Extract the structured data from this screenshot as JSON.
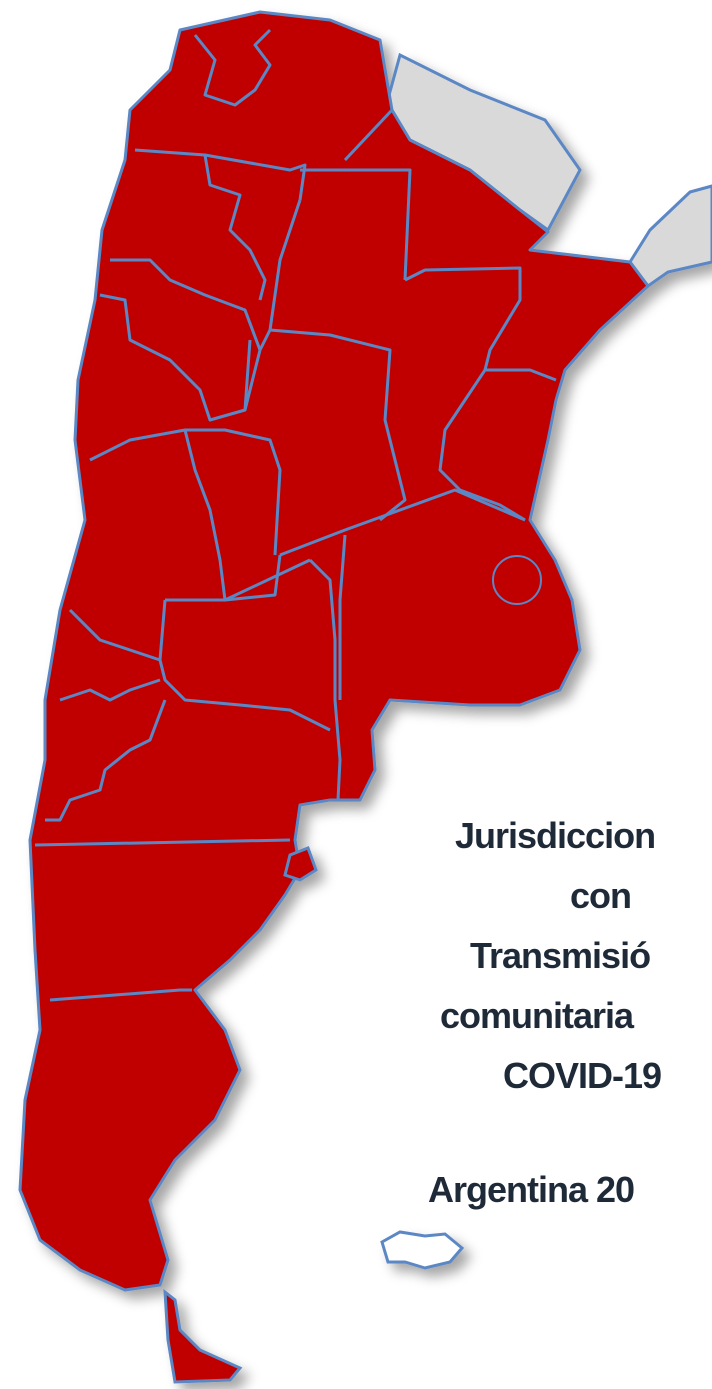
{
  "annotation": {
    "lines": [
      "Jurisdiccion",
      "con",
      "Transmisió",
      "comunitaria",
      "COVID-19",
      "Argentina 20"
    ]
  }
}
